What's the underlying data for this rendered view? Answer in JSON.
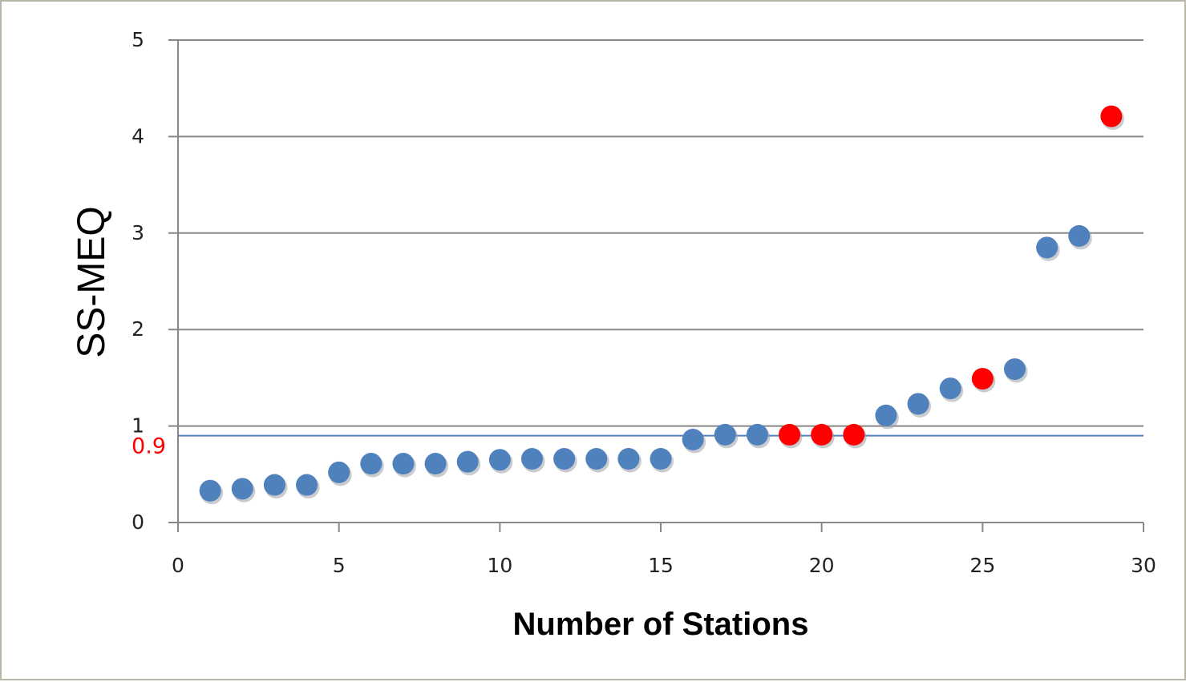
{
  "chart_data": {
    "type": "scatter",
    "title": "",
    "xlabel": "Number of Stations",
    "ylabel": "SS-MEQ",
    "xlim": [
      0,
      30
    ],
    "ylim": [
      0,
      5
    ],
    "x_ticks": [
      0,
      5,
      10,
      15,
      20,
      25,
      30
    ],
    "y_ticks": [
      0,
      1,
      2,
      3,
      4,
      5
    ],
    "grid": "horizontal",
    "legend": "none",
    "reference_line": {
      "y": 0.9,
      "label": "0.9",
      "color": "#4f81bd",
      "label_color": "#ff0000"
    },
    "colors": {
      "normal": "#4f81bd",
      "highlighted": "#ff0000"
    },
    "series": [
      {
        "color": "#4f81bd",
        "points": [
          {
            "x": 1,
            "y": 0.33
          },
          {
            "x": 2,
            "y": 0.35
          },
          {
            "x": 3,
            "y": 0.39
          },
          {
            "x": 4,
            "y": 0.39
          },
          {
            "x": 5,
            "y": 0.52
          },
          {
            "x": 6,
            "y": 0.61
          },
          {
            "x": 7,
            "y": 0.61
          },
          {
            "x": 8,
            "y": 0.61
          },
          {
            "x": 9,
            "y": 0.63
          },
          {
            "x": 10,
            "y": 0.65
          },
          {
            "x": 11,
            "y": 0.66
          },
          {
            "x": 12,
            "y": 0.66
          },
          {
            "x": 13,
            "y": 0.66
          },
          {
            "x": 14,
            "y": 0.66
          },
          {
            "x": 15,
            "y": 0.66
          },
          {
            "x": 16,
            "y": 0.86
          },
          {
            "x": 17,
            "y": 0.91
          },
          {
            "x": 18,
            "y": 0.91
          },
          {
            "x": 22,
            "y": 1.11
          },
          {
            "x": 23,
            "y": 1.23
          },
          {
            "x": 24,
            "y": 1.39
          },
          {
            "x": 26,
            "y": 1.59
          },
          {
            "x": 27,
            "y": 2.85
          },
          {
            "x": 28,
            "y": 2.97
          }
        ]
      },
      {
        "color": "#ff0000",
        "points": [
          {
            "x": 19,
            "y": 0.91
          },
          {
            "x": 20,
            "y": 0.91
          },
          {
            "x": 21,
            "y": 0.91
          },
          {
            "x": 25,
            "y": 1.49
          },
          {
            "x": 29,
            "y": 4.21
          }
        ]
      }
    ]
  }
}
